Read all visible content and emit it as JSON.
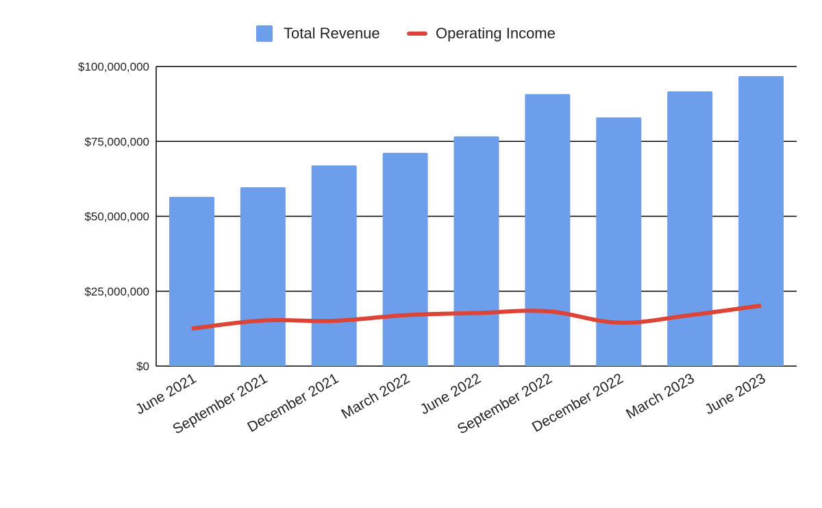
{
  "chart_data": {
    "type": "bar",
    "title": "",
    "xlabel": "",
    "ylabel": "",
    "categories": [
      "June 2021",
      "September 2021",
      "December 2021",
      "March 2022",
      "June 2022",
      "September 2022",
      "December 2022",
      "March 2023",
      "June 2023"
    ],
    "series": [
      {
        "name": "Total Revenue",
        "type": "bar",
        "color": "#6d9eeb",
        "values": [
          56500000,
          59700000,
          67000000,
          71200000,
          76700000,
          90800000,
          83000000,
          91700000,
          96800000
        ]
      },
      {
        "name": "Operating Income",
        "type": "line",
        "color": "#db4437",
        "values": [
          12500000,
          15200000,
          15100000,
          17000000,
          17700000,
          18300000,
          14500000,
          17000000,
          20200000
        ]
      }
    ],
    "ylim": [
      0,
      100000000
    ],
    "yticks": [
      0,
      25000000,
      50000000,
      75000000,
      100000000
    ],
    "ytick_labels": [
      "$0",
      "$25,000,000",
      "$50,000,000",
      "$75,000,000",
      "$100,000,000"
    ],
    "grid": true,
    "legend": "top-center"
  }
}
